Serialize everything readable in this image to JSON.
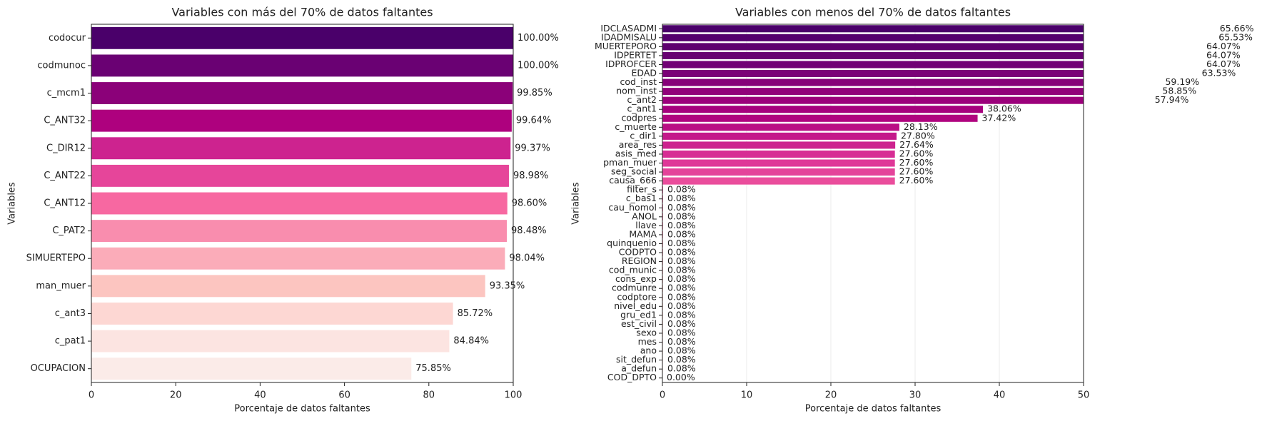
{
  "chart_data": [
    {
      "type": "barh",
      "title": "Variables con más del 70% de datos faltantes",
      "xlabel": "Porcentaje de datos faltantes",
      "ylabel": "Variables",
      "categories": [
        "codocur",
        "codmunoc",
        "c_mcm1",
        "C_ANT32",
        "C_DIR12",
        "C_ANT22",
        "C_ANT12",
        "C_PAT2",
        "SIMUERTEPO",
        "man_muer",
        "c_ant3",
        "c_pat1",
        "OCUPACION"
      ],
      "values": [
        100.0,
        100.0,
        99.85,
        99.64,
        99.37,
        98.98,
        98.6,
        98.48,
        98.04,
        93.35,
        85.72,
        84.84,
        75.85
      ],
      "value_labels": [
        "100.00%",
        "100.00%",
        "99.85%",
        "99.64%",
        "99.37%",
        "98.98%",
        "98.60%",
        "98.48%",
        "98.04%",
        "93.35%",
        "85.72%",
        "84.84%",
        "75.85%"
      ],
      "palette": [
        "#4a006a",
        "#7a0177",
        "#ae017e",
        "#dd3497",
        "#f768a1",
        "#fa9fb5",
        "#fcc5c0",
        "#fde0dd",
        "#fbebe8"
      ],
      "xlim": [
        0,
        100
      ],
      "xticks": [
        0,
        20,
        40,
        60,
        80,
        100
      ],
      "grid": false
    },
    {
      "type": "barh",
      "title": "Variables con menos del 70% de datos faltantes",
      "xlabel": "Porcentaje de datos faltantes",
      "ylabel": "Variables",
      "categories": [
        "IDCLASADMI",
        "IDADMISALU",
        "MUERTEPORO",
        "IDPERTET",
        "IDPROFCER",
        "EDAD",
        "cod_inst",
        "nom_inst",
        "c_ant2",
        "c_ant1",
        "codpres",
        "c_muerte",
        "c_dir1",
        "area_res",
        "asis_med",
        "pman_muer",
        "seg_social",
        "causa_666",
        "filter_s",
        "c_bas1",
        "cau_homol",
        "ANOL",
        "llave",
        "MAMA",
        "quinquenio",
        "CODPTO",
        "REGION",
        "cod_munic",
        "cons_exp",
        "codmunre",
        "codptore",
        "nivel_edu",
        "gru_ed1",
        "est_civil",
        "sexo",
        "mes",
        "ano",
        "sit_defun",
        "a_defun",
        "COD_DPTO"
      ],
      "values": [
        65.66,
        65.53,
        64.07,
        64.07,
        64.07,
        63.53,
        59.19,
        58.85,
        57.94,
        38.06,
        37.42,
        28.13,
        27.8,
        27.64,
        27.6,
        27.6,
        27.6,
        27.6,
        0.08,
        0.08,
        0.08,
        0.08,
        0.08,
        0.08,
        0.08,
        0.08,
        0.08,
        0.08,
        0.08,
        0.08,
        0.08,
        0.08,
        0.08,
        0.08,
        0.08,
        0.08,
        0.08,
        0.08,
        0.08,
        0.0
      ],
      "value_labels": [
        "65.66%",
        "65.53%",
        "64.07%",
        "64.07%",
        "64.07%",
        "63.53%",
        "59.19%",
        "58.85%",
        "57.94%",
        "38.06%",
        "37.42%",
        "28.13%",
        "27.80%",
        "27.64%",
        "27.60%",
        "27.60%",
        "27.60%",
        "27.60%",
        "0.08%",
        "0.08%",
        "0.08%",
        "0.08%",
        "0.08%",
        "0.08%",
        "0.08%",
        "0.08%",
        "0.08%",
        "0.08%",
        "0.08%",
        "0.08%",
        "0.08%",
        "0.08%",
        "0.08%",
        "0.08%",
        "0.08%",
        "0.08%",
        "0.08%",
        "0.08%",
        "0.08%",
        "0.00%"
      ],
      "palette": [
        "#4a006a",
        "#7a0177",
        "#ae017e",
        "#dd3497",
        "#f768a1",
        "#fa9fb5",
        "#fcc5c0",
        "#fde0dd",
        "#fff7f3"
      ],
      "xlim": [
        0,
        50
      ],
      "xticks": [
        0,
        10,
        20,
        30,
        40,
        50
      ],
      "grid": true
    }
  ]
}
